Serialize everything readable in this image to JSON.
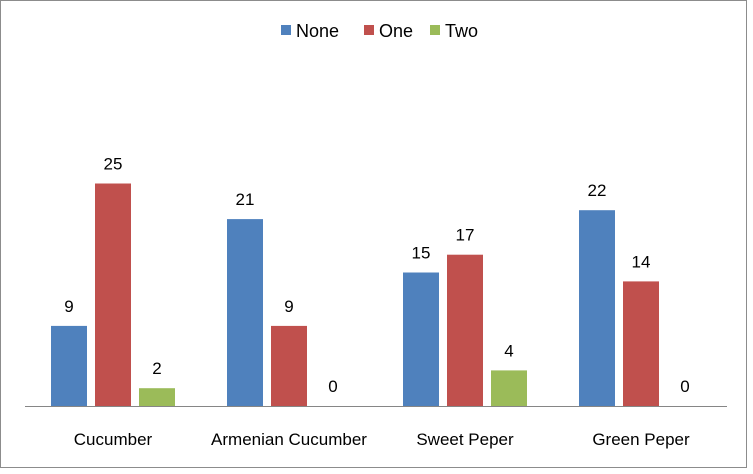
{
  "chart_data": {
    "type": "bar",
    "categories": [
      "Cucumber",
      "Armenian Cucumber",
      "Sweet Peper",
      "Green Peper"
    ],
    "series": [
      {
        "name": "None",
        "values": [
          9,
          21,
          15,
          22
        ],
        "color": "#4f81bd"
      },
      {
        "name": "One",
        "values": [
          25,
          9,
          17,
          14
        ],
        "color": "#c0504d"
      },
      {
        "name": "Two",
        "values": [
          2,
          0,
          4,
          0
        ],
        "color": "#9bbb59"
      }
    ],
    "ylim": [
      0,
      30
    ],
    "grid": false,
    "legend_position": "top",
    "data_labels": true
  }
}
